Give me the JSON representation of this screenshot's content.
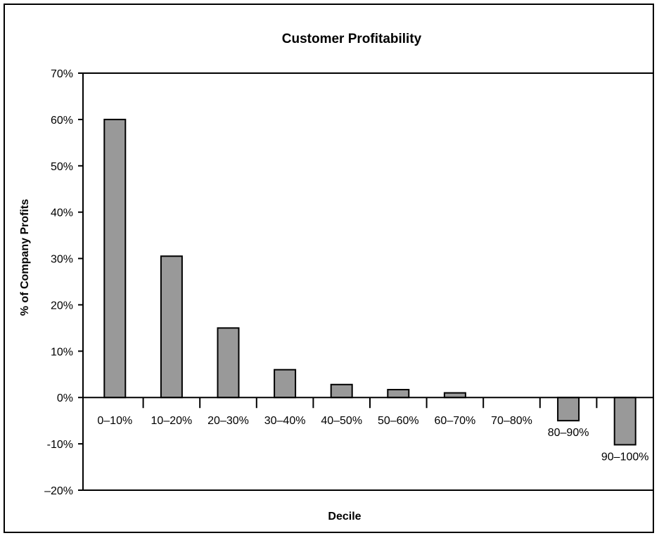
{
  "chart_data": {
    "type": "bar",
    "title": "Customer Profitability",
    "xlabel": "Decile",
    "ylabel": "% of Company Profits",
    "categories": [
      "0–10%",
      "10–20%",
      "20–30%",
      "30–40%",
      "40–50%",
      "50–60%",
      "60–70%",
      "70–80%",
      "80–90%",
      "90–100%"
    ],
    "values": [
      60,
      30.5,
      15,
      6,
      2.8,
      1.7,
      1,
      0,
      -5,
      -10.2
    ],
    "yticks": [
      "70%",
      "60%",
      "50%",
      "40%",
      "30%",
      "20%",
      "10%",
      "0%",
      "-10%",
      "–20%"
    ],
    "ylim": [
      -20,
      70
    ],
    "grid": false,
    "legend": "none",
    "colors": {
      "bar_fill": "#999999",
      "bar_stroke": "#000000",
      "axis": "#000000"
    }
  }
}
